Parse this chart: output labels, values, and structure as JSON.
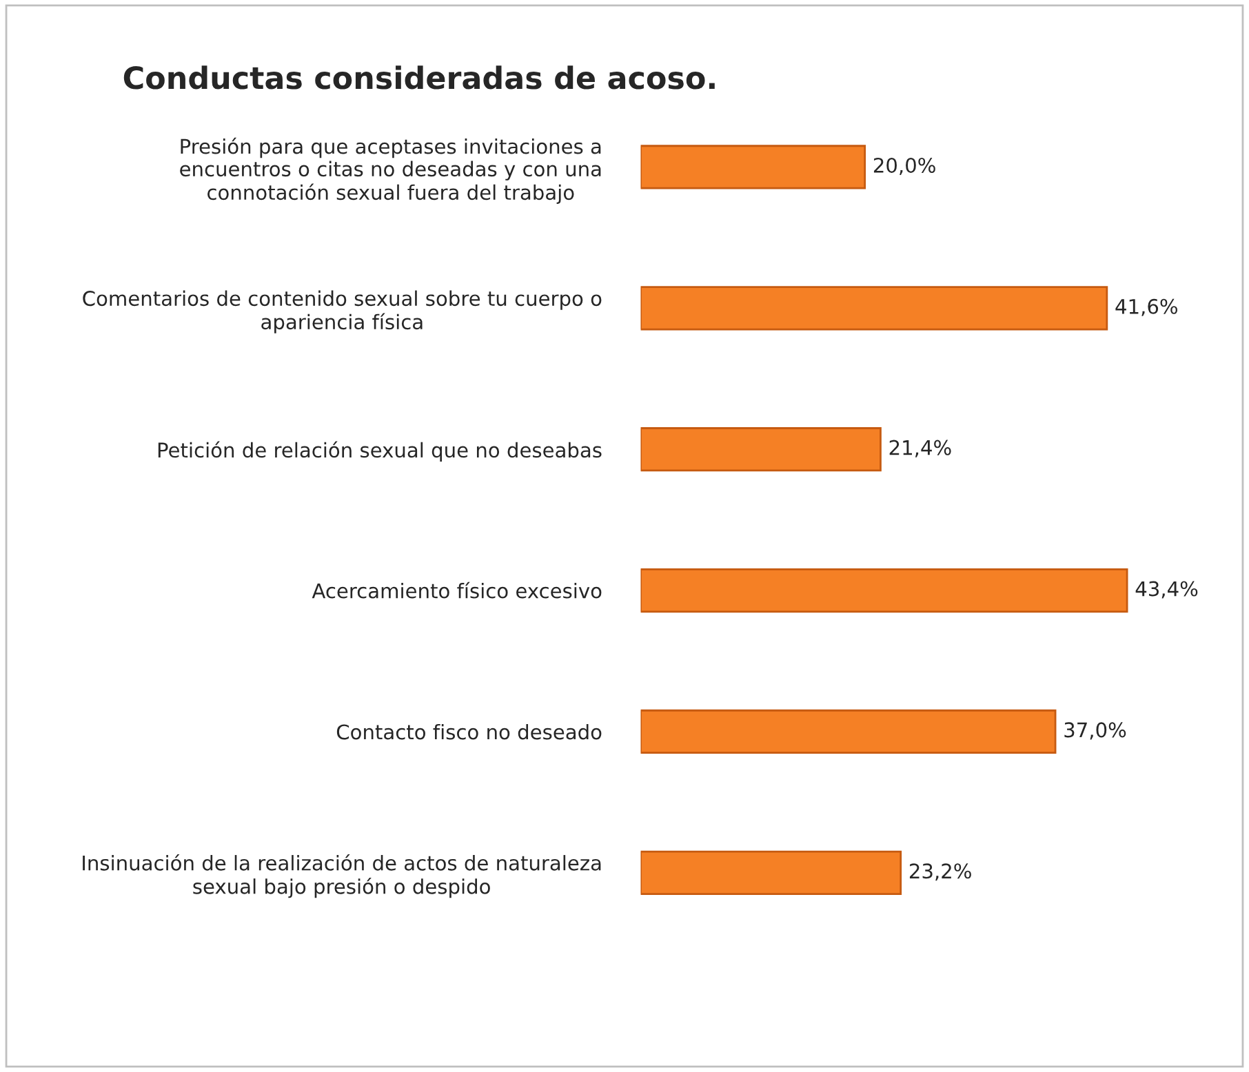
{
  "chart_data": {
    "type": "bar",
    "orientation": "horizontal",
    "title": "Conductas consideradas de acoso.",
    "categories": [
      "Presión para que aceptases invitaciones a\nencuentros o citas no deseadas y con una\nconnotación sexual fuera del trabajo",
      "Comentarios de contenido sexual sobre tu cuerpo o\napariencia física",
      "Petición de relación sexual que no deseabas",
      "Acercamiento físico excesivo",
      "Contacto fisco no deseado",
      "Insinuación de la realización de actos de naturaleza\nsexual bajo presión o despido"
    ],
    "values": [
      20.0,
      41.6,
      21.4,
      43.4,
      37.0,
      23.2
    ],
    "value_labels": [
      "20,0%",
      "41,6%",
      "21,4%",
      "43,4%",
      "37,0%",
      "23,2%"
    ],
    "color": "#f58025",
    "grid": false,
    "legend": false
  }
}
